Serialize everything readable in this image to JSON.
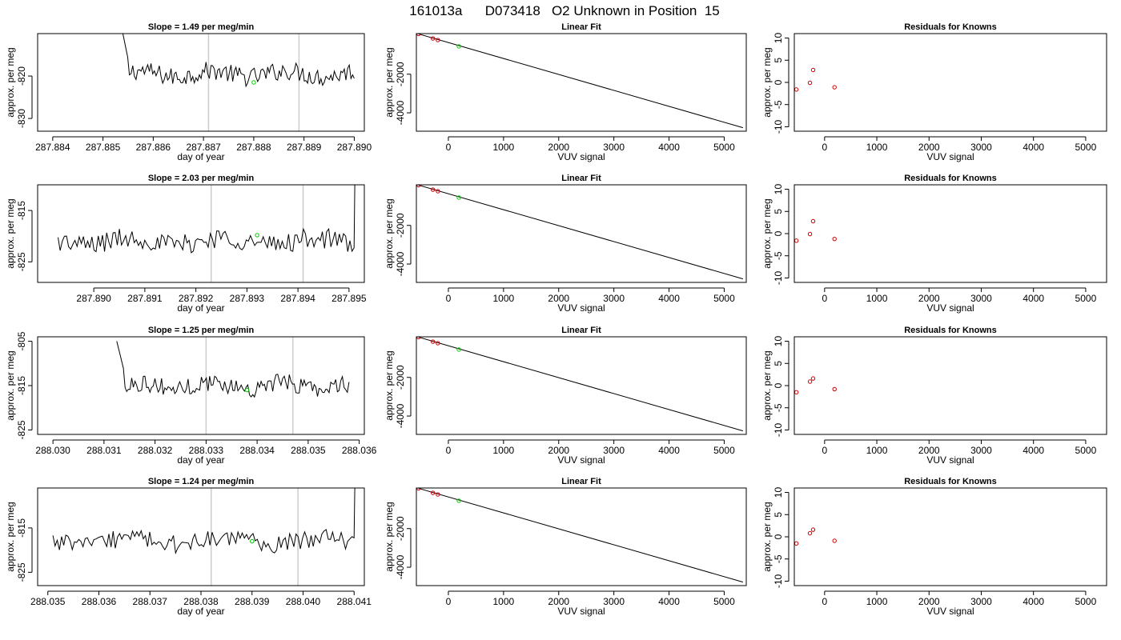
{
  "header": {
    "title": "161013a      D073418   O2 Unknown in Position  15"
  },
  "colors": {
    "line": "#000000",
    "gridline": "#cccccc",
    "known_marker": "#cc0000",
    "unknown_marker": "#00cc00"
  },
  "chart_data": [
    {
      "type": "line",
      "title": "Slope =  1.49  per meg/min",
      "xlabel": "day of year",
      "ylabel": "approx. per meg",
      "xlim": [
        287.8837,
        287.8902
      ],
      "ylim": [
        -833,
        -810
      ],
      "xticks": [
        287.884,
        287.885,
        287.886,
        287.887,
        287.888,
        287.889,
        287.89
      ],
      "xtick_labels": [
        "287.884",
        "287.885",
        "287.886",
        "287.887",
        "287.888",
        "287.889",
        "287.890"
      ],
      "yticks": [
        -830,
        -820
      ],
      "ytick_labels": [
        "-830",
        "-820"
      ],
      "vlines": [
        287.8871,
        287.8889
      ],
      "series_start": 287.88536,
      "series_end": 287.89,
      "series_level": -819.5,
      "series_noise": 2.2,
      "initial_drop": {
        "from": -808,
        "to": -816,
        "until": 287.8855
      },
      "final_jump": null,
      "unknown_point": {
        "x": 287.888,
        "y": -821.5
      }
    },
    {
      "type": "scatter",
      "title": "Linear Fit",
      "xlabel": "VUV signal",
      "ylabel": "approx. per meg",
      "xlim": [
        -580,
        5400
      ],
      "ylim": [
        -4950,
        100
      ],
      "xticks": [
        0,
        1000,
        2000,
        3000,
        4000,
        5000
      ],
      "xtick_labels": [
        "0",
        "1000",
        "2000",
        "3000",
        "4000",
        "5000"
      ],
      "yticks": [
        -4000,
        -2000
      ],
      "ytick_labels": [
        "-4000",
        "-2000"
      ],
      "fit_line": {
        "x": [
          -540,
          5340
        ],
        "y": [
          82,
          -4770
        ]
      },
      "knowns": [
        {
          "x": -540,
          "y": 82
        },
        {
          "x": -280,
          "y": -150
        },
        {
          "x": -190,
          "y": -232
        }
      ],
      "unknown": {
        "x": 190,
        "y": -560
      }
    },
    {
      "type": "scatter",
      "title": "Residuals for Knowns",
      "xlabel": "VUV signal",
      "ylabel": "approx. per meg",
      "xlim": [
        -580,
        5400
      ],
      "ylim": [
        -11,
        11
      ],
      "xticks": [
        0,
        1000,
        2000,
        3000,
        4000,
        5000
      ],
      "xtick_labels": [
        "0",
        "1000",
        "2000",
        "3000",
        "4000",
        "5000"
      ],
      "yticks": [
        -10,
        -5,
        0,
        5,
        10
      ],
      "ytick_labels": [
        "-10",
        "-5",
        "0",
        "5",
        "10"
      ],
      "points": [
        {
          "x": -540,
          "y": -1.6
        },
        {
          "x": -280,
          "y": -0.1
        },
        {
          "x": -220,
          "y": 2.8
        },
        {
          "x": 190,
          "y": -1.1
        }
      ]
    },
    {
      "type": "line",
      "title": "Slope =  2.03  per meg/min",
      "xlabel": "day of year",
      "ylabel": "approx. per meg",
      "xlim": [
        287.8889,
        287.8953
      ],
      "ylim": [
        -829,
        -810
      ],
      "xticks": [
        287.89,
        287.891,
        287.892,
        287.893,
        287.894,
        287.895
      ],
      "xtick_labels": [
        "287.890",
        "287.891",
        "287.892",
        "287.893",
        "287.894",
        "287.895"
      ],
      "yticks": [
        -825,
        -815
      ],
      "ytick_labels": [
        "-825",
        "-815"
      ],
      "vlines": [
        287.8923,
        287.8941
      ],
      "series_start": 287.8893,
      "series_end": 287.8951,
      "series_level": -821,
      "series_noise": 2.0,
      "initial_drop": null,
      "final_jump": {
        "from": 287.895,
        "to": -810
      },
      "unknown_point": {
        "x": 287.8932,
        "y": -819.8
      }
    },
    {
      "type": "scatter",
      "title": "Linear Fit",
      "xlabel": "VUV signal",
      "ylabel": "approx. per meg",
      "xlim": [
        -580,
        5400
      ],
      "ylim": [
        -4950,
        100
      ],
      "xticks": [
        0,
        1000,
        2000,
        3000,
        4000,
        5000
      ],
      "xtick_labels": [
        "0",
        "1000",
        "2000",
        "3000",
        "4000",
        "5000"
      ],
      "yticks": [
        -4000,
        -2000
      ],
      "ytick_labels": [
        "-4000",
        "-2000"
      ],
      "fit_line": {
        "x": [
          -540,
          5340
        ],
        "y": [
          82,
          -4770
        ]
      },
      "knowns": [
        {
          "x": -540,
          "y": 82
        },
        {
          "x": -280,
          "y": -150
        },
        {
          "x": -190,
          "y": -232
        }
      ],
      "unknown": {
        "x": 190,
        "y": -560
      }
    },
    {
      "type": "scatter",
      "title": "Residuals for Knowns",
      "xlabel": "VUV signal",
      "ylabel": "approx. per meg",
      "xlim": [
        -580,
        5400
      ],
      "ylim": [
        -11,
        11
      ],
      "xticks": [
        0,
        1000,
        2000,
        3000,
        4000,
        5000
      ],
      "xtick_labels": [
        "0",
        "1000",
        "2000",
        "3000",
        "4000",
        "5000"
      ],
      "yticks": [
        -10,
        -5,
        0,
        5,
        10
      ],
      "ytick_labels": [
        "-10",
        "-5",
        "0",
        "5",
        "10"
      ],
      "points": [
        {
          "x": -540,
          "y": -1.6
        },
        {
          "x": -280,
          "y": -0.1
        },
        {
          "x": -220,
          "y": 2.8
        },
        {
          "x": 190,
          "y": -1.2
        }
      ]
    },
    {
      "type": "line",
      "title": "Slope =  1.25  per meg/min",
      "xlabel": "day of year",
      "ylabel": "approx. per meg",
      "xlim": [
        288.0297,
        288.0361
      ],
      "ylim": [
        -826,
        -804
      ],
      "xticks": [
        288.03,
        288.031,
        288.032,
        288.033,
        288.034,
        288.035,
        288.036
      ],
      "xtick_labels": [
        "288.030",
        "288.031",
        "288.032",
        "288.033",
        "288.034",
        "288.035",
        "288.036"
      ],
      "yticks": [
        -825,
        -815,
        -805
      ],
      "ytick_labels": [
        "-825",
        "-815",
        "-805"
      ],
      "vlines": [
        288.033,
        288.0347
      ],
      "series_start": 288.03125,
      "series_end": 288.0358,
      "series_level": -815,
      "series_noise": 2.0,
      "initial_drop": {
        "from": -805,
        "to": -812,
        "until": 288.0314
      },
      "final_jump": null,
      "unknown_point": {
        "x": 288.0338,
        "y": -816
      }
    },
    {
      "type": "scatter",
      "title": "Linear Fit",
      "xlabel": "VUV signal",
      "ylabel": "approx. per meg",
      "xlim": [
        -580,
        5400
      ],
      "ylim": [
        -4950,
        100
      ],
      "xticks": [
        0,
        1000,
        2000,
        3000,
        4000,
        5000
      ],
      "xtick_labels": [
        "0",
        "1000",
        "2000",
        "3000",
        "4000",
        "5000"
      ],
      "yticks": [
        -4000,
        -2000
      ],
      "ytick_labels": [
        "-4000",
        "-2000"
      ],
      "fit_line": {
        "x": [
          -540,
          5340
        ],
        "y": [
          82,
          -4770
        ]
      },
      "knowns": [
        {
          "x": -540,
          "y": 82
        },
        {
          "x": -280,
          "y": -150
        },
        {
          "x": -190,
          "y": -232
        }
      ],
      "unknown": {
        "x": 190,
        "y": -560
      }
    },
    {
      "type": "scatter",
      "title": "Residuals for Knowns",
      "xlabel": "VUV signal",
      "ylabel": "approx. per meg",
      "xlim": [
        -580,
        5400
      ],
      "ylim": [
        -11,
        11
      ],
      "xticks": [
        0,
        1000,
        2000,
        3000,
        4000,
        5000
      ],
      "xtick_labels": [
        "0",
        "1000",
        "2000",
        "3000",
        "4000",
        "5000"
      ],
      "yticks": [
        -10,
        -5,
        0,
        5,
        10
      ],
      "ytick_labels": [
        "-10",
        "-5",
        "0",
        "5",
        "10"
      ],
      "points": [
        {
          "x": -540,
          "y": -1.5
        },
        {
          "x": -280,
          "y": 0.9
        },
        {
          "x": -220,
          "y": 1.6
        },
        {
          "x": 190,
          "y": -0.8
        }
      ]
    },
    {
      "type": "line",
      "title": "Slope =  1.24  per meg/min",
      "xlabel": "day of year",
      "ylabel": "approx. per meg",
      "xlim": [
        288.0348,
        288.0412
      ],
      "ylim": [
        -828,
        -806
      ],
      "xticks": [
        288.035,
        288.036,
        288.037,
        288.038,
        288.039,
        288.04,
        288.041
      ],
      "xtick_labels": [
        "288.035",
        "288.036",
        "288.037",
        "288.038",
        "288.039",
        "288.040",
        "288.041"
      ],
      "yticks": [
        -825,
        -815
      ],
      "ytick_labels": [
        "-825",
        "-815"
      ],
      "vlines": [
        288.0382,
        288.0399
      ],
      "series_start": 288.0351,
      "series_end": 288.041,
      "series_level": -818,
      "series_noise": 2.0,
      "initial_drop": null,
      "final_jump": {
        "from": 288.04095,
        "to": -806
      },
      "unknown_point": {
        "x": 288.039,
        "y": -818
      }
    },
    {
      "type": "scatter",
      "title": "Linear Fit",
      "xlabel": "VUV signal",
      "ylabel": "approx. per meg",
      "xlim": [
        -580,
        5400
      ],
      "ylim": [
        -4950,
        100
      ],
      "xticks": [
        0,
        1000,
        2000,
        3000,
        4000,
        5000
      ],
      "xtick_labels": [
        "0",
        "1000",
        "2000",
        "3000",
        "4000",
        "5000"
      ],
      "yticks": [
        -4000,
        -2000
      ],
      "ytick_labels": [
        "-4000",
        "-2000"
      ],
      "fit_line": {
        "x": [
          -540,
          5340
        ],
        "y": [
          82,
          -4770
        ]
      },
      "knowns": [
        {
          "x": -540,
          "y": 82
        },
        {
          "x": -280,
          "y": -150
        },
        {
          "x": -190,
          "y": -232
        }
      ],
      "unknown": {
        "x": 190,
        "y": -560
      }
    },
    {
      "type": "scatter",
      "title": "Residuals for Knowns",
      "xlabel": "VUV signal",
      "ylabel": "approx. per meg",
      "xlim": [
        -580,
        5400
      ],
      "ylim": [
        -11,
        11
      ],
      "xticks": [
        0,
        1000,
        2000,
        3000,
        4000,
        5000
      ],
      "xtick_labels": [
        "0",
        "1000",
        "2000",
        "3000",
        "4000",
        "5000"
      ],
      "yticks": [
        -10,
        -5,
        0,
        5,
        10
      ],
      "ytick_labels": [
        "-10",
        "-5",
        "0",
        "5",
        "10"
      ],
      "points": [
        {
          "x": -540,
          "y": -1.5
        },
        {
          "x": -280,
          "y": 0.8
        },
        {
          "x": -220,
          "y": 1.6
        },
        {
          "x": 190,
          "y": -0.9
        }
      ]
    }
  ]
}
